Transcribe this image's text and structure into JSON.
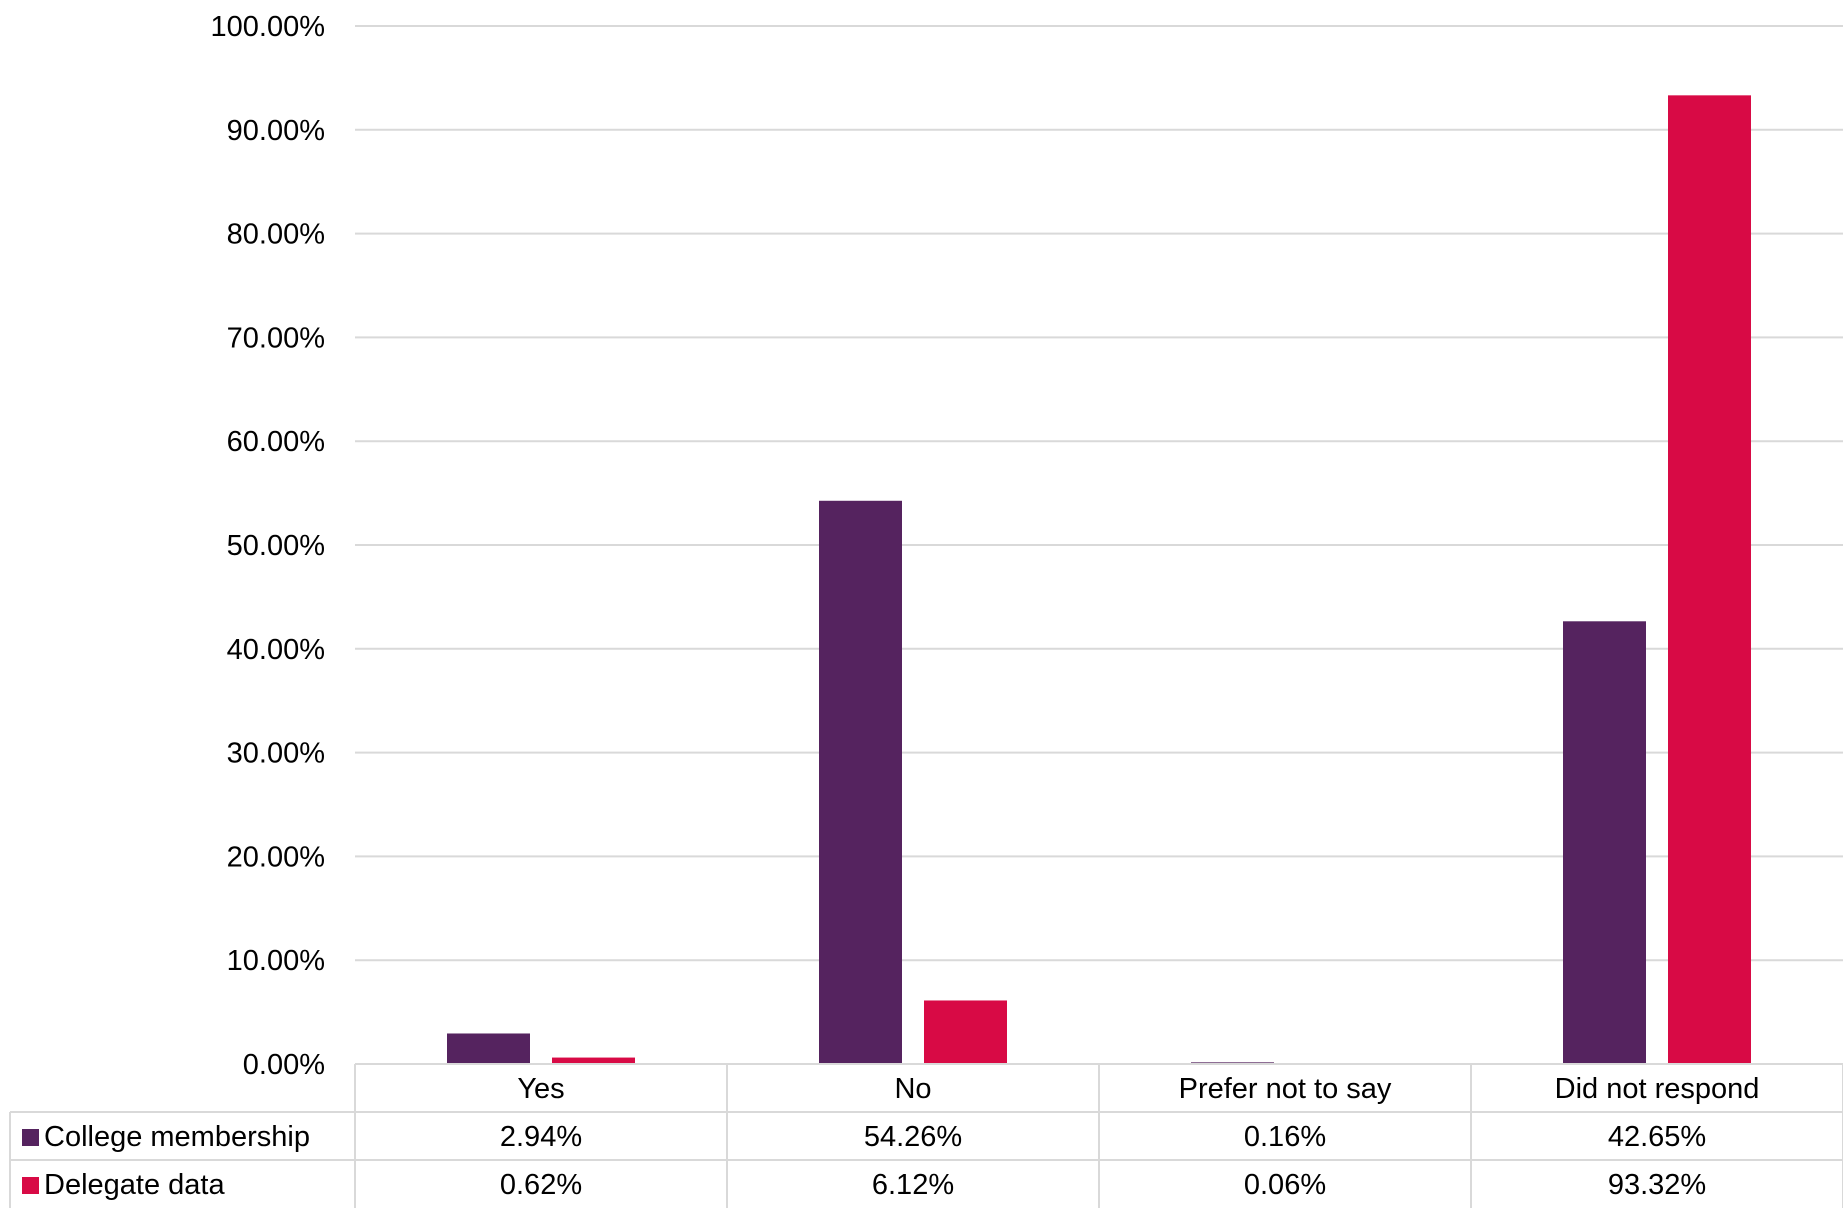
{
  "chart_data": {
    "type": "bar",
    "title": "",
    "xlabel": "",
    "ylabel": "",
    "categories": [
      "Yes",
      "No",
      "Prefer not to say",
      "Did not respond"
    ],
    "series": [
      {
        "name": "College membership",
        "values": [
          2.94,
          54.26,
          0.16,
          42.65
        ],
        "labels": [
          "2.94%",
          "54.26%",
          "0.16%",
          "42.65%"
        ],
        "color": "#55235f"
      },
      {
        "name": "Delegate data",
        "values": [
          0.62,
          6.12,
          0.06,
          93.32
        ],
        "labels": [
          "0.62%",
          "6.12%",
          "0.06%",
          "93.32%"
        ],
        "color": "#d80a45"
      }
    ],
    "ylim": [
      0,
      100
    ],
    "yticks": [
      "0.00%",
      "10.00%",
      "20.00%",
      "30.00%",
      "40.00%",
      "50.00%",
      "60.00%",
      "70.00%",
      "80.00%",
      "90.00%",
      "100.00%"
    ],
    "grid": true,
    "legend": "data-table-rows",
    "gridline_color": "#d9d9d9"
  }
}
